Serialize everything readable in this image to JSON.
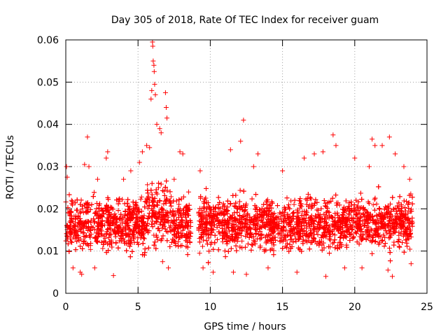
{
  "chart_data": {
    "type": "scatter",
    "title": "Day 305 of 2018, Rate Of TEC Index for receiver guam",
    "xlabel": "GPS time / hours",
    "ylabel": "ROTI / TECUs",
    "xlim": [
      0,
      25
    ],
    "ylim": [
      0,
      0.06
    ],
    "x_ticks": [
      "0",
      "5",
      "10",
      "15",
      "20",
      "25"
    ],
    "y_ticks": [
      "0",
      "0.01",
      "0.02",
      "0.03",
      "0.04",
      "0.05",
      "0.06"
    ],
    "grid": true,
    "marker": "+",
    "marker_color": "#ff0000",
    "data_gap_hours": [
      8.7,
      9.2
    ],
    "series": [
      {
        "points": [
          [
            0.05,
            0.03
          ],
          [
            0.1,
            0.0275
          ],
          [
            0.4,
            0.022
          ],
          [
            0.5,
            0.006
          ],
          [
            1.0,
            0.005
          ],
          [
            1.1,
            0.0045
          ],
          [
            1.3,
            0.0305
          ],
          [
            1.5,
            0.037
          ],
          [
            1.6,
            0.03
          ],
          [
            2.0,
            0.006
          ],
          [
            2.2,
            0.027
          ],
          [
            2.8,
            0.032
          ],
          [
            2.9,
            0.0335
          ],
          [
            3.3,
            0.0042
          ],
          [
            4.0,
            0.027
          ],
          [
            4.5,
            0.029
          ],
          [
            5.1,
            0.031
          ],
          [
            5.3,
            0.0335
          ],
          [
            5.6,
            0.035
          ],
          [
            5.8,
            0.0345
          ],
          [
            5.9,
            0.046
          ],
          [
            5.95,
            0.048
          ],
          [
            6.0,
            0.0595
          ],
          [
            6.02,
            0.0585
          ],
          [
            6.05,
            0.055
          ],
          [
            6.1,
            0.054
          ],
          [
            6.12,
            0.0525
          ],
          [
            6.15,
            0.0495
          ],
          [
            6.2,
            0.047
          ],
          [
            6.3,
            0.04
          ],
          [
            6.5,
            0.039
          ],
          [
            6.6,
            0.038
          ],
          [
            6.7,
            0.0075
          ],
          [
            6.9,
            0.0475
          ],
          [
            6.95,
            0.044
          ],
          [
            7.0,
            0.0415
          ],
          [
            7.1,
            0.006
          ],
          [
            7.5,
            0.027
          ],
          [
            7.9,
            0.0335
          ],
          [
            8.1,
            0.033
          ],
          [
            8.5,
            0.024
          ],
          [
            8.6,
            0.012
          ],
          [
            9.3,
            0.029
          ],
          [
            9.5,
            0.006
          ],
          [
            10.2,
            0.005
          ],
          [
            11.4,
            0.034
          ],
          [
            11.6,
            0.005
          ],
          [
            12.1,
            0.036
          ],
          [
            12.3,
            0.041
          ],
          [
            12.5,
            0.0045
          ],
          [
            13.0,
            0.03
          ],
          [
            13.3,
            0.033
          ],
          [
            14.0,
            0.006
          ],
          [
            15.0,
            0.029
          ],
          [
            16.0,
            0.005
          ],
          [
            16.5,
            0.032
          ],
          [
            17.2,
            0.033
          ],
          [
            17.8,
            0.0335
          ],
          [
            18.0,
            0.004
          ],
          [
            18.5,
            0.0375
          ],
          [
            18.7,
            0.035
          ],
          [
            19.3,
            0.006
          ],
          [
            20.0,
            0.032
          ],
          [
            20.5,
            0.006
          ],
          [
            21.0,
            0.03
          ],
          [
            21.2,
            0.0365
          ],
          [
            21.4,
            0.035
          ],
          [
            21.9,
            0.035
          ],
          [
            22.3,
            0.0055
          ],
          [
            22.4,
            0.037
          ],
          [
            22.6,
            0.004
          ],
          [
            22.8,
            0.033
          ],
          [
            23.4,
            0.03
          ],
          [
            23.8,
            0.027
          ],
          [
            23.9,
            0.007
          ]
        ]
      }
    ]
  }
}
